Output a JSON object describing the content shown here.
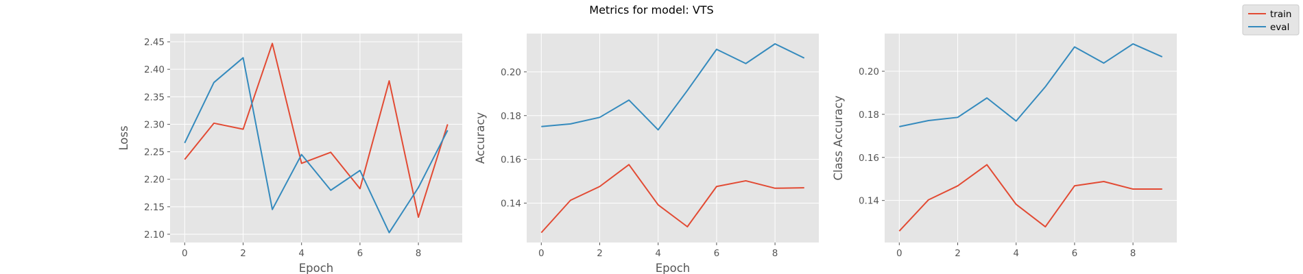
{
  "figure": {
    "title": "Metrics for model: VTS",
    "legend": {
      "placement": "top-right",
      "entries": [
        {
          "name": "train",
          "color": "#E24A33"
        },
        {
          "name": "eval",
          "color": "#348ABD"
        }
      ]
    },
    "style": {
      "axes_bg": "#E5E5E5",
      "grid_color": "#FFFFFF"
    }
  },
  "chart_data": [
    {
      "type": "line",
      "xlabel": "Epoch",
      "ylabel": "Loss",
      "xlim": [
        -0.5,
        9.5
      ],
      "ylim": [
        2.085,
        2.465
      ],
      "xticks": [
        0,
        2,
        4,
        6,
        8
      ],
      "yticks": [
        2.1,
        2.15,
        2.2,
        2.25,
        2.3,
        2.35,
        2.4,
        2.45
      ],
      "ytick_labels": [
        "2.10",
        "2.15",
        "2.20",
        "2.25",
        "2.30",
        "2.35",
        "2.40",
        "2.45"
      ],
      "grid": true,
      "x": [
        0,
        1,
        2,
        3,
        4,
        5,
        6,
        7,
        8,
        9
      ],
      "series": [
        {
          "name": "train",
          "color": "#E24A33",
          "values": [
            2.236,
            2.302,
            2.291,
            2.447,
            2.229,
            2.249,
            2.183,
            2.379,
            2.131,
            2.3
          ]
        },
        {
          "name": "eval",
          "color": "#348ABD",
          "values": [
            2.266,
            2.376,
            2.421,
            2.145,
            2.245,
            2.18,
            2.216,
            2.103,
            2.185,
            2.289
          ]
        }
      ]
    },
    {
      "type": "line",
      "xlabel": "Epoch",
      "ylabel": "Accuracy",
      "xlim": [
        -0.5,
        9.5
      ],
      "ylim": [
        0.122,
        0.2175
      ],
      "xticks": [
        0,
        2,
        4,
        6,
        8
      ],
      "yticks": [
        0.14,
        0.16,
        0.18,
        0.2
      ],
      "ytick_labels": [
        "0.14",
        "0.16",
        "0.18",
        "0.20"
      ],
      "grid": true,
      "x": [
        0,
        1,
        2,
        3,
        4,
        5,
        6,
        7,
        8,
        9
      ],
      "series": [
        {
          "name": "train",
          "color": "#E24A33",
          "values": [
            0.1265,
            0.1413,
            0.1476,
            0.1576,
            0.1392,
            0.1292,
            0.1476,
            0.1502,
            0.1468,
            0.147
          ]
        },
        {
          "name": "eval",
          "color": "#348ABD",
          "values": [
            0.175,
            0.1762,
            0.1792,
            0.1871,
            0.1735,
            0.1915,
            0.2103,
            0.2038,
            0.2128,
            0.2063
          ]
        }
      ]
    },
    {
      "type": "line",
      "xlabel": "",
      "ylabel": "Class Accuracy",
      "xlim": [
        -0.5,
        9.5
      ],
      "ylim": [
        0.1205,
        0.2175
      ],
      "xticks": [
        0,
        2,
        4,
        6,
        8
      ],
      "yticks": [
        0.14,
        0.16,
        0.18,
        0.2
      ],
      "ytick_labels": [
        "0.14",
        "0.16",
        "0.18",
        "0.20"
      ],
      "grid": true,
      "x": [
        0,
        1,
        2,
        3,
        4,
        5,
        6,
        7,
        8,
        9
      ],
      "series": [
        {
          "name": "train",
          "color": "#E24A33",
          "values": [
            0.1258,
            0.1403,
            0.1468,
            0.1566,
            0.1382,
            0.1278,
            0.1468,
            0.1488,
            0.1453,
            0.1453
          ]
        },
        {
          "name": "eval",
          "color": "#348ABD",
          "values": [
            0.1743,
            0.1771,
            0.1786,
            0.1876,
            0.1769,
            0.1928,
            0.2113,
            0.2038,
            0.2127,
            0.2067
          ]
        }
      ]
    }
  ]
}
